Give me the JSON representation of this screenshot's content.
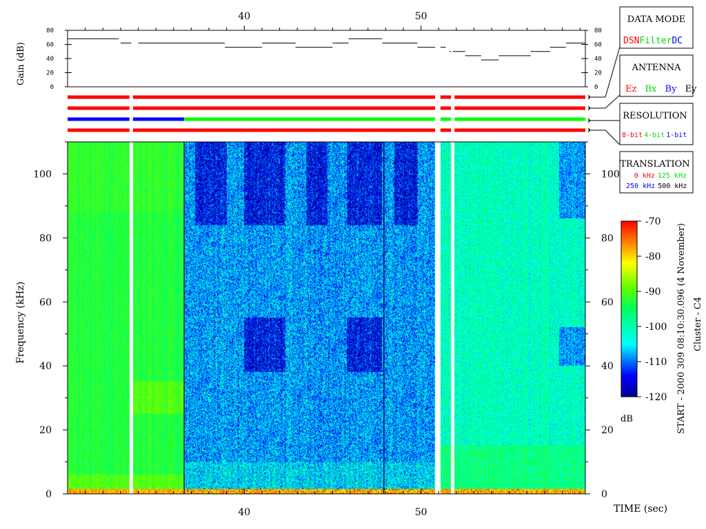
{
  "chart_data": {
    "type": "heatmap",
    "instrument": "Cluster - C4",
    "start_label": "START - 2000 309 08:10:30.096 (4 November)",
    "xlabel": "TIME (sec)",
    "xlim": [
      30,
      59.3
    ],
    "x_ticks": [
      40,
      50
    ],
    "x_tick_labels": [
      "40",
      "50"
    ],
    "gain_panel": {
      "ylabel": "Gain (dB)",
      "ylim": [
        0,
        80
      ],
      "y_ticks": [
        0,
        20,
        40,
        60,
        80
      ],
      "y_tick_labels": [
        "0",
        "20",
        "40",
        "60",
        "80"
      ],
      "segments": [
        {
          "t0": 30.0,
          "t1": 32.9,
          "gain": 68
        },
        {
          "t0": 33.0,
          "t1": 33.6,
          "gain": 62
        },
        {
          "t0": 34.0,
          "t1": 38.9,
          "gain": 62
        },
        {
          "t0": 38.9,
          "t1": 41.0,
          "gain": 56
        },
        {
          "t0": 41.0,
          "t1": 42.9,
          "gain": 62
        },
        {
          "t0": 42.9,
          "t1": 45.0,
          "gain": 56
        },
        {
          "t0": 45.0,
          "t1": 45.9,
          "gain": 62
        },
        {
          "t0": 45.9,
          "t1": 47.8,
          "gain": 68
        },
        {
          "t0": 47.8,
          "t1": 49.8,
          "gain": 62
        },
        {
          "t0": 49.8,
          "t1": 50.8,
          "gain": 56
        },
        {
          "t0": 51.1,
          "t1": 51.4,
          "gain": 56
        },
        {
          "t0": 51.6,
          "t1": 51.7,
          "gain": 50
        },
        {
          "t0": 51.8,
          "t1": 52.5,
          "gain": 50
        },
        {
          "t0": 52.5,
          "t1": 53.4,
          "gain": 44
        },
        {
          "t0": 53.4,
          "t1": 54.4,
          "gain": 38
        },
        {
          "t0": 54.4,
          "t1": 56.2,
          "gain": 44
        },
        {
          "t0": 56.2,
          "t1": 57.3,
          "gain": 50
        },
        {
          "t0": 57.3,
          "t1": 58.2,
          "gain": 56
        },
        {
          "t0": 58.2,
          "t1": 59.3,
          "gain": 62
        }
      ]
    },
    "mode_bars": [
      {
        "name": "DATA MODE",
        "segments": [
          {
            "t0": 30.0,
            "t1": 33.5,
            "color": "#ff0000"
          },
          {
            "t0": 33.7,
            "t1": 50.8,
            "color": "#ff0000"
          },
          {
            "t0": 51.1,
            "t1": 51.7,
            "color": "#ff0000"
          },
          {
            "t0": 51.9,
            "t1": 59.3,
            "color": "#ff0000"
          }
        ]
      },
      {
        "name": "ANTENNA",
        "segments": [
          {
            "t0": 30.0,
            "t1": 33.5,
            "color": "#ff0000"
          },
          {
            "t0": 33.7,
            "t1": 50.8,
            "color": "#ff0000"
          },
          {
            "t0": 51.1,
            "t1": 51.7,
            "color": "#ff0000"
          },
          {
            "t0": 51.9,
            "t1": 59.3,
            "color": "#ff0000"
          }
        ]
      },
      {
        "name": "RESOLUTION",
        "segments": [
          {
            "t0": 30.0,
            "t1": 33.5,
            "color": "#0000ff"
          },
          {
            "t0": 33.7,
            "t1": 36.6,
            "color": "#0000ff"
          },
          {
            "t0": 36.6,
            "t1": 50.8,
            "color": "#00ff00"
          },
          {
            "t0": 51.1,
            "t1": 51.7,
            "color": "#00ff00"
          },
          {
            "t0": 51.9,
            "t1": 59.3,
            "color": "#00ff00"
          }
        ]
      },
      {
        "name": "TRANSLATION",
        "segments": [
          {
            "t0": 30.0,
            "t1": 33.5,
            "color": "#ff0000"
          },
          {
            "t0": 33.7,
            "t1": 50.8,
            "color": "#ff0000"
          },
          {
            "t0": 51.1,
            "t1": 51.7,
            "color": "#ff0000"
          },
          {
            "t0": 51.9,
            "t1": 59.3,
            "color": "#ff0000"
          }
        ]
      }
    ],
    "spectrogram": {
      "ylabel": "Frequency (kHz)",
      "ylim": [
        0,
        110
      ],
      "y_ticks": [
        0,
        20,
        40,
        60,
        80,
        100
      ],
      "y_tick_labels": [
        "0",
        "20",
        "40",
        "60",
        "80",
        "100"
      ],
      "data_gaps": [
        [
          33.5,
          33.7
        ],
        [
          50.8,
          51.1
        ],
        [
          51.7,
          51.9
        ]
      ],
      "regions": [
        {
          "t0": 30.0,
          "t1": 36.6,
          "base_db": -93
        },
        {
          "t0": 36.6,
          "t1": 50.8,
          "base_db": -108
        },
        {
          "t0": 51.1,
          "t1": 59.3,
          "base_db": -101
        }
      ],
      "dark_bands": [
        {
          "t0": 37.2,
          "t1": 39.0,
          "f0": 84,
          "f1": 110
        },
        {
          "t0": 40.0,
          "t1": 42.3,
          "f0": 84,
          "f1": 110
        },
        {
          "t0": 43.5,
          "t1": 44.7,
          "f0": 84,
          "f1": 110
        },
        {
          "t0": 45.8,
          "t1": 47.8,
          "f0": 84,
          "f1": 110
        },
        {
          "t0": 48.5,
          "t1": 49.8,
          "f0": 84,
          "f1": 110
        },
        {
          "t0": 57.8,
          "t1": 59.3,
          "f0": 86,
          "f1": 110
        },
        {
          "t0": 40.0,
          "t1": 42.3,
          "f0": 38,
          "f1": 55
        },
        {
          "t0": 45.8,
          "t1": 47.8,
          "f0": 38,
          "f1": 55
        },
        {
          "t0": 57.8,
          "t1": 59.3,
          "f0": 40,
          "f1": 52
        }
      ]
    },
    "colorbar": {
      "unit": "dB",
      "range": [
        -120,
        -70
      ],
      "ticks": [
        -70,
        -80,
        -90,
        -100,
        -110,
        -120
      ],
      "tick_labels": [
        "-70",
        "-80",
        "-90",
        "-100",
        "-110",
        "-120"
      ]
    }
  },
  "legend": {
    "data_mode": {
      "title": "DATA MODE",
      "items": [
        {
          "label": "DSN",
          "color": "#ff0000"
        },
        {
          "label": "Filter",
          "color": "#00ff00"
        },
        {
          "label": "DC",
          "color": "#0000ff"
        }
      ]
    },
    "antenna": {
      "title": "ANTENNA",
      "items": [
        {
          "label": "Ez",
          "color": "#ff0000"
        },
        {
          "label": "Bx",
          "color": "#00ff00"
        },
        {
          "label": "By",
          "color": "#0000ff"
        },
        {
          "label": "Ey",
          "color": "#000000"
        }
      ]
    },
    "resolution": {
      "title": "RESOLUTION",
      "items": [
        {
          "label": "8-bit",
          "color": "#ff0000"
        },
        {
          "label": "4-bit",
          "color": "#00ff00"
        },
        {
          "label": "1-bit",
          "color": "#0000ff"
        }
      ]
    },
    "translation": {
      "title": "TRANSLATION",
      "items": [
        {
          "label": "0 kHz",
          "color": "#ff0000"
        },
        {
          "label": "125 kHz",
          "color": "#00ff00"
        },
        {
          "label": "250 kHz",
          "color": "#0000ff"
        },
        {
          "label": "500 kHz",
          "color": "#000000"
        }
      ]
    }
  }
}
